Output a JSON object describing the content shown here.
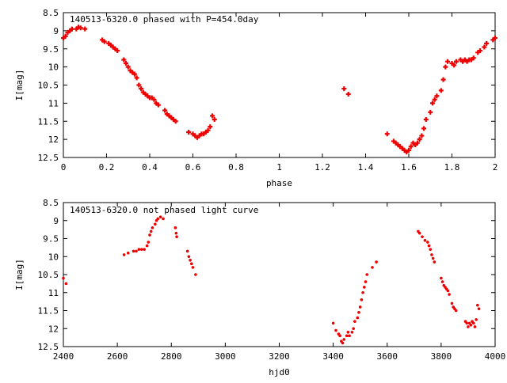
{
  "chart_data": [
    {
      "type": "scatter",
      "title": "140513-6320.0 phased with P=454.0day",
      "xlabel": "phase",
      "ylabel": "I[mag]",
      "xlim": [
        0,
        2
      ],
      "ylim": [
        12.5,
        8.5
      ],
      "y_inverted": true,
      "grid": false,
      "xticks": [
        0,
        0.2,
        0.4,
        0.6,
        0.8,
        1,
        1.2,
        1.4,
        1.6,
        1.8,
        2
      ],
      "xtick_labels": [
        "0",
        "0.2",
        "0.4",
        "0.6",
        "0.8",
        "1",
        "1.2",
        "1.4",
        "1.6",
        "1.8",
        "2"
      ],
      "yticks": [
        8.5,
        9,
        9.5,
        10,
        10.5,
        11,
        11.5,
        12,
        12.5
      ],
      "ytick_labels": [
        "8.5",
        "9",
        "9.5",
        "10",
        "10.5",
        "11",
        "11.5",
        "12",
        "12.5"
      ],
      "marker_color": "#ee0000",
      "marker": "plus",
      "points": [
        [
          0.0,
          9.2
        ],
        [
          0.01,
          9.15
        ],
        [
          0.02,
          9.05
        ],
        [
          0.03,
          9.0
        ],
        [
          0.04,
          8.95
        ],
        [
          0.06,
          8.95
        ],
        [
          0.07,
          8.9
        ],
        [
          0.08,
          8.92
        ],
        [
          0.1,
          8.95
        ],
        [
          0.18,
          9.25
        ],
        [
          0.19,
          9.3
        ],
        [
          0.21,
          9.35
        ],
        [
          0.22,
          9.4
        ],
        [
          0.23,
          9.45
        ],
        [
          0.24,
          9.5
        ],
        [
          0.25,
          9.55
        ],
        [
          0.28,
          9.8
        ],
        [
          0.29,
          9.9
        ],
        [
          0.3,
          10.0
        ],
        [
          0.31,
          10.1
        ],
        [
          0.32,
          10.15
        ],
        [
          0.33,
          10.2
        ],
        [
          0.34,
          10.3
        ],
        [
          0.35,
          10.5
        ],
        [
          0.36,
          10.6
        ],
        [
          0.37,
          10.7
        ],
        [
          0.38,
          10.75
        ],
        [
          0.39,
          10.8
        ],
        [
          0.4,
          10.85
        ],
        [
          0.41,
          10.85
        ],
        [
          0.42,
          10.9
        ],
        [
          0.43,
          11.0
        ],
        [
          0.44,
          11.05
        ],
        [
          0.47,
          11.2
        ],
        [
          0.48,
          11.3
        ],
        [
          0.49,
          11.35
        ],
        [
          0.5,
          11.4
        ],
        [
          0.51,
          11.45
        ],
        [
          0.52,
          11.5
        ],
        [
          0.58,
          11.8
        ],
        [
          0.6,
          11.85
        ],
        [
          0.61,
          11.9
        ],
        [
          0.62,
          11.95
        ],
        [
          0.63,
          11.9
        ],
        [
          0.64,
          11.85
        ],
        [
          0.65,
          11.85
        ],
        [
          0.66,
          11.8
        ],
        [
          0.67,
          11.75
        ],
        [
          0.68,
          11.65
        ],
        [
          0.69,
          11.35
        ],
        [
          0.7,
          11.45
        ],
        [
          1.3,
          10.6
        ],
        [
          1.32,
          10.75
        ],
        [
          1.5,
          11.85
        ],
        [
          1.53,
          12.05
        ],
        [
          1.54,
          12.1
        ],
        [
          1.55,
          12.15
        ],
        [
          1.56,
          12.2
        ],
        [
          1.57,
          12.25
        ],
        [
          1.58,
          12.3
        ],
        [
          1.59,
          12.35
        ],
        [
          1.6,
          12.3
        ],
        [
          1.61,
          12.2
        ],
        [
          1.62,
          12.1
        ],
        [
          1.63,
          12.15
        ],
        [
          1.64,
          12.1
        ],
        [
          1.65,
          12.0
        ],
        [
          1.66,
          11.9
        ],
        [
          1.67,
          11.7
        ],
        [
          1.68,
          11.45
        ],
        [
          1.7,
          11.25
        ],
        [
          1.71,
          11.0
        ],
        [
          1.72,
          10.9
        ],
        [
          1.73,
          10.8
        ],
        [
          1.75,
          10.65
        ],
        [
          1.76,
          10.35
        ],
        [
          1.77,
          10.0
        ],
        [
          1.78,
          9.85
        ],
        [
          1.8,
          9.9
        ],
        [
          1.81,
          9.95
        ],
        [
          1.82,
          9.85
        ],
        [
          1.84,
          9.8
        ],
        [
          1.85,
          9.85
        ],
        [
          1.86,
          9.8
        ],
        [
          1.87,
          9.85
        ],
        [
          1.88,
          9.8
        ],
        [
          1.89,
          9.8
        ],
        [
          1.9,
          9.75
        ],
        [
          1.92,
          9.6
        ],
        [
          1.93,
          9.55
        ],
        [
          1.95,
          9.45
        ],
        [
          1.96,
          9.35
        ],
        [
          1.99,
          9.25
        ],
        [
          2.0,
          9.2
        ]
      ]
    },
    {
      "type": "scatter",
      "title": "140513-6320.0 not phased light curve",
      "xlabel": "hjd0",
      "ylabel": "I[mag]",
      "xlim": [
        2400,
        4000
      ],
      "ylim": [
        12.5,
        8.5
      ],
      "y_inverted": true,
      "grid": false,
      "xticks": [
        2400,
        2600,
        2800,
        3000,
        3200,
        3400,
        3600,
        3800,
        4000
      ],
      "xtick_labels": [
        "2400",
        "2600",
        "2800",
        "3000",
        "3200",
        "3400",
        "3600",
        "3800",
        "4000"
      ],
      "yticks": [
        8.5,
        9,
        9.5,
        10,
        10.5,
        11,
        11.5,
        12,
        12.5
      ],
      "ytick_labels": [
        "8.5",
        "9",
        "9.5",
        "10",
        "10.5",
        "11",
        "11.5",
        "12",
        "12.5"
      ],
      "marker_color": "#ee0000",
      "marker": "dot",
      "points": [
        [
          2400,
          10.6
        ],
        [
          2410,
          10.75
        ],
        [
          2625,
          9.95
        ],
        [
          2640,
          9.9
        ],
        [
          2660,
          9.85
        ],
        [
          2670,
          9.85
        ],
        [
          2680,
          9.8
        ],
        [
          2690,
          9.8
        ],
        [
          2700,
          9.8
        ],
        [
          2710,
          9.7
        ],
        [
          2715,
          9.6
        ],
        [
          2720,
          9.4
        ],
        [
          2725,
          9.3
        ],
        [
          2730,
          9.2
        ],
        [
          2740,
          9.1
        ],
        [
          2745,
          9.0
        ],
        [
          2750,
          8.95
        ],
        [
          2760,
          8.9
        ],
        [
          2770,
          8.95
        ],
        [
          2815,
          9.2
        ],
        [
          2818,
          9.35
        ],
        [
          2820,
          9.45
        ],
        [
          2860,
          9.85
        ],
        [
          2865,
          10.0
        ],
        [
          2870,
          10.1
        ],
        [
          2875,
          10.2
        ],
        [
          2880,
          10.3
        ],
        [
          2890,
          10.5
        ],
        [
          3400,
          11.85
        ],
        [
          3410,
          12.05
        ],
        [
          3420,
          12.15
        ],
        [
          3425,
          12.2
        ],
        [
          3430,
          12.35
        ],
        [
          3435,
          12.4
        ],
        [
          3440,
          12.3
        ],
        [
          3450,
          12.2
        ],
        [
          3455,
          12.1
        ],
        [
          3460,
          12.2
        ],
        [
          3470,
          12.1
        ],
        [
          3475,
          12.0
        ],
        [
          3480,
          11.8
        ],
        [
          3490,
          11.7
        ],
        [
          3495,
          11.55
        ],
        [
          3500,
          11.4
        ],
        [
          3505,
          11.2
        ],
        [
          3510,
          11.0
        ],
        [
          3515,
          10.85
        ],
        [
          3520,
          10.7
        ],
        [
          3525,
          10.5
        ],
        [
          3545,
          10.3
        ],
        [
          3560,
          10.15
        ],
        [
          3715,
          9.3
        ],
        [
          3720,
          9.35
        ],
        [
          3730,
          9.45
        ],
        [
          3740,
          9.55
        ],
        [
          3750,
          9.6
        ],
        [
          3755,
          9.7
        ],
        [
          3760,
          9.8
        ],
        [
          3765,
          9.95
        ],
        [
          3770,
          10.05
        ],
        [
          3775,
          10.15
        ],
        [
          3800,
          10.6
        ],
        [
          3805,
          10.7
        ],
        [
          3810,
          10.8
        ],
        [
          3815,
          10.85
        ],
        [
          3820,
          10.9
        ],
        [
          3825,
          10.95
        ],
        [
          3830,
          11.05
        ],
        [
          3840,
          11.3
        ],
        [
          3845,
          11.4
        ],
        [
          3850,
          11.45
        ],
        [
          3855,
          11.5
        ],
        [
          3890,
          11.8
        ],
        [
          3895,
          11.85
        ],
        [
          3900,
          11.95
        ],
        [
          3905,
          11.85
        ],
        [
          3910,
          11.9
        ],
        [
          3915,
          11.8
        ],
        [
          3920,
          11.85
        ],
        [
          3925,
          11.95
        ],
        [
          3930,
          11.75
        ],
        [
          3935,
          11.35
        ],
        [
          3940,
          11.45
        ]
      ]
    }
  ]
}
